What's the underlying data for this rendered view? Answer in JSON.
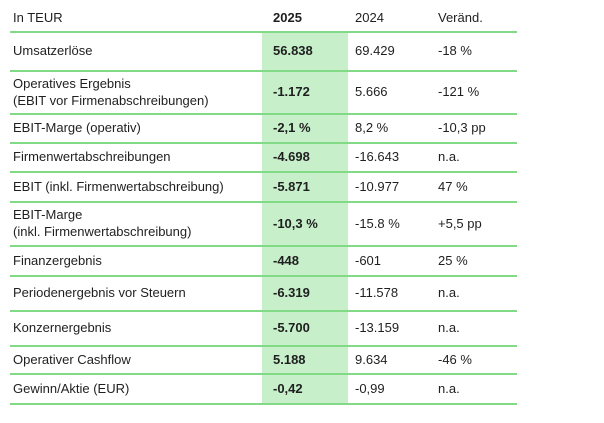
{
  "table": {
    "columns": [
      "In TEUR",
      "2025",
      "2024",
      "Veränd."
    ],
    "rows": [
      {
        "label": "Umsatzerlöse",
        "y2025": "56.838",
        "y2024": "69.429",
        "change": "-18 %"
      },
      {
        "label": "Operatives Ergebnis",
        "label2": "(EBIT vor Firmenabschreibungen)",
        "y2025": "-1.172",
        "y2024": "5.666",
        "change": "-121 %"
      },
      {
        "label": "EBIT-Marge (operativ)",
        "y2025": "-2,1 %",
        "y2024": "8,2 %",
        "change": "-10,3 pp"
      },
      {
        "label": "Firmenwertabschreibungen",
        "y2025": "-4.698",
        "y2024": "-16.643",
        "change": "n.a."
      },
      {
        "label": "EBIT (inkl. Firmenwertabschreibung)",
        "y2025": "-5.871",
        "y2024": "-10.977",
        "change": "47 %"
      },
      {
        "label": "EBIT-Marge",
        "label2": "(inkl. Firmenwertabschreibung)",
        "y2025": "-10,3 %",
        "y2024": "-15.8 %",
        "change": "+5,5 pp"
      },
      {
        "label": "Finanzergebnis",
        "y2025": "-448",
        "y2024": "-601",
        "change": "25 %"
      },
      {
        "label": "Periodenergebnis vor Steuern",
        "y2025": "-6.319",
        "y2024": "-11.578",
        "change": "n.a."
      },
      {
        "label": "Konzernergebnis",
        "y2025": "-5.700",
        "y2024": "-13.159",
        "change": "n.a."
      },
      {
        "label": "Operativer Cashflow",
        "y2025": "5.188",
        "y2024": "9.634",
        "change": "-46 %"
      },
      {
        "label": "Gewinn/Aktie (EUR)",
        "y2025": "-0,42",
        "y2024": "-0,99",
        "change": "n.a."
      }
    ],
    "colors": {
      "highlight_fill": "#c6efca",
      "line_green": "#82da86",
      "text": "#1f1f1f"
    }
  }
}
